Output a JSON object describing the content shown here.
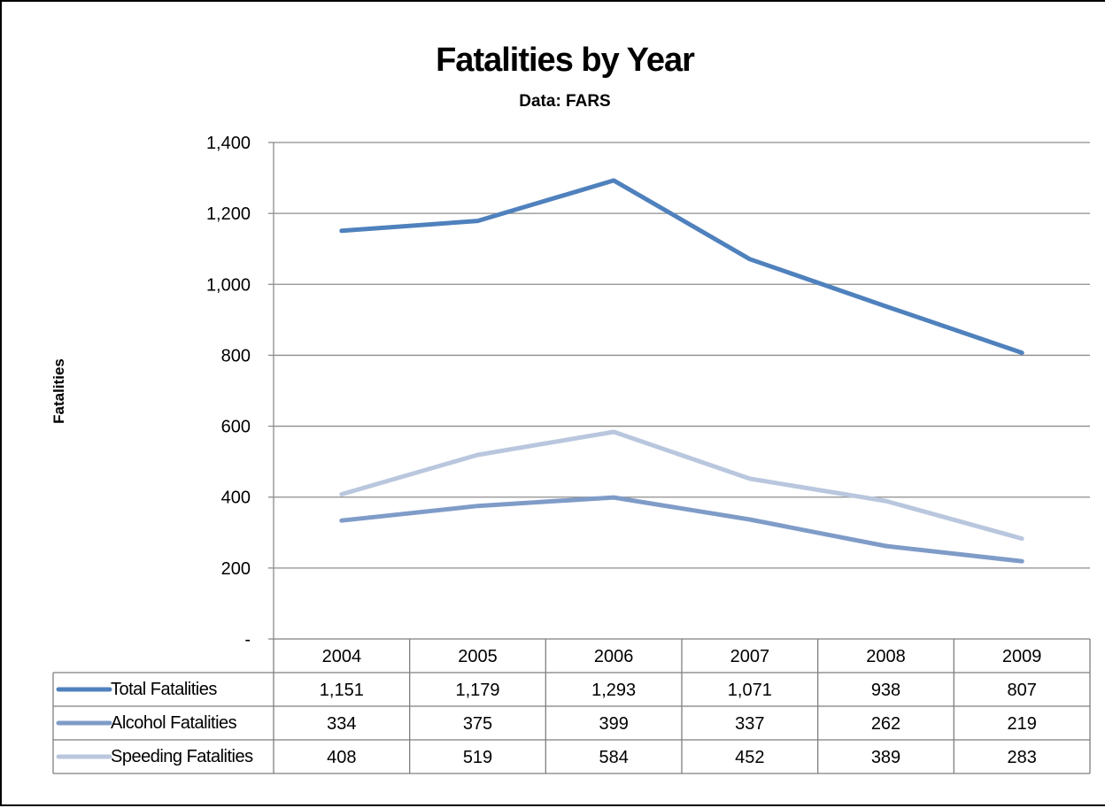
{
  "chart_data": {
    "type": "line",
    "title": "Fatalities by Year",
    "subtitle": "Data:  FARS",
    "ylabel": "Fatalities",
    "xlabel": "",
    "categories": [
      "2004",
      "2005",
      "2006",
      "2007",
      "2008",
      "2009"
    ],
    "ylim": [
      0,
      1400
    ],
    "yticks": [
      0,
      200,
      400,
      600,
      800,
      1000,
      1200,
      1400
    ],
    "ytick_labels": [
      "-",
      "200",
      "400",
      "600",
      "800",
      "1,000",
      "1,200",
      "1,400"
    ],
    "grid": true,
    "legend_placement": "data-table",
    "series": [
      {
        "name": "Total Fatalities",
        "values": [
          1151,
          1179,
          1293,
          1071,
          938,
          807
        ],
        "labels": [
          "1,151",
          "1,179",
          "1,293",
          "1,071",
          "938",
          "807"
        ],
        "color": "#4f81bd"
      },
      {
        "name": "Alcohol Fatalities",
        "values": [
          334,
          375,
          399,
          337,
          262,
          219
        ],
        "labels": [
          "334",
          "375",
          "399",
          "337",
          "262",
          "219"
        ],
        "color": "#7f9cc8"
      },
      {
        "name": "Speeding Fatalities",
        "values": [
          408,
          519,
          584,
          452,
          389,
          283
        ],
        "labels": [
          "408",
          "519",
          "584",
          "452",
          "389",
          "283"
        ],
        "color": "#b9c7de"
      }
    ]
  }
}
